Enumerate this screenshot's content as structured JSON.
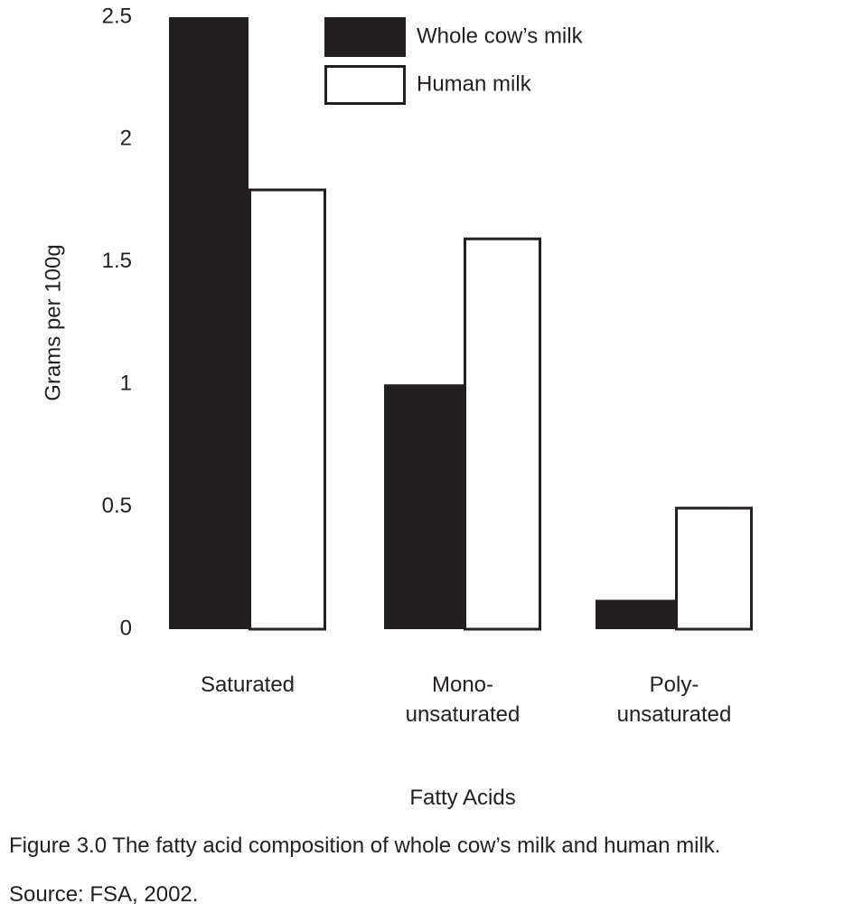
{
  "chart_data": {
    "type": "bar",
    "title": "",
    "xlabel": "Fatty Acids",
    "ylabel": "Grams per 100g",
    "ylim": [
      0,
      2.5
    ],
    "yticks": [
      "0",
      "0.5",
      "1",
      "1.5",
      "2",
      "2.5"
    ],
    "categories": [
      [
        "Saturated"
      ],
      [
        "Mono-",
        "unsaturated"
      ],
      [
        "Poly-",
        "unsaturated"
      ]
    ],
    "series": [
      {
        "name": "Whole cow’s milk",
        "values": [
          2.5,
          1.0,
          0.12
        ],
        "color": "#231f20"
      },
      {
        "name": "Human milk",
        "values": [
          1.8,
          1.6,
          0.5
        ],
        "color": "#ffffff"
      }
    ],
    "grid": false,
    "legend": "top-center"
  },
  "caption": {
    "figure": "Figure 3.0 The fatty acid composition of whole cow’s milk and human milk.",
    "source": "Source: FSA, 2002."
  }
}
